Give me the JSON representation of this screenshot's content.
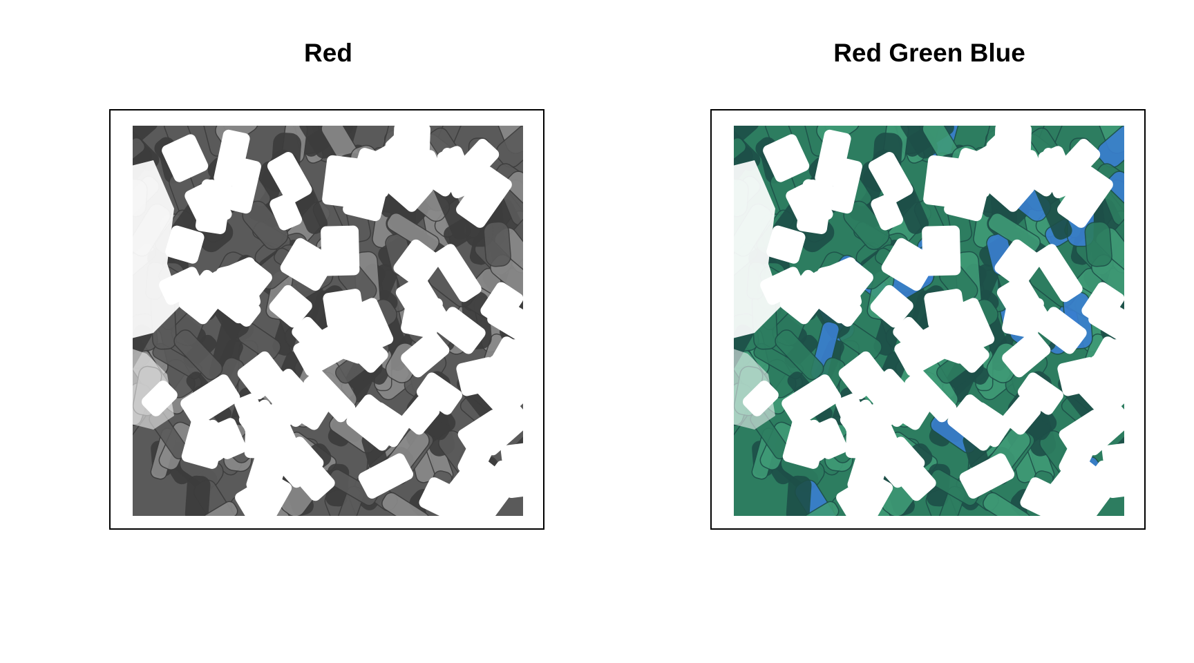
{
  "panels": [
    {
      "title": "Red",
      "style": "grayscale",
      "colors": {
        "base": "#5a5a5a",
        "dark": "#3c3c3c",
        "light": "#8a8a8a",
        "blob": "#ffffff"
      }
    },
    {
      "title": "Red Green Blue",
      "style": "rgb",
      "colors": {
        "base": "#2d7d60",
        "dark": "#1d4f48",
        "light": "#3f9a76",
        "accent": "#3a7fd0",
        "blob": "#ffffff"
      }
    }
  ]
}
